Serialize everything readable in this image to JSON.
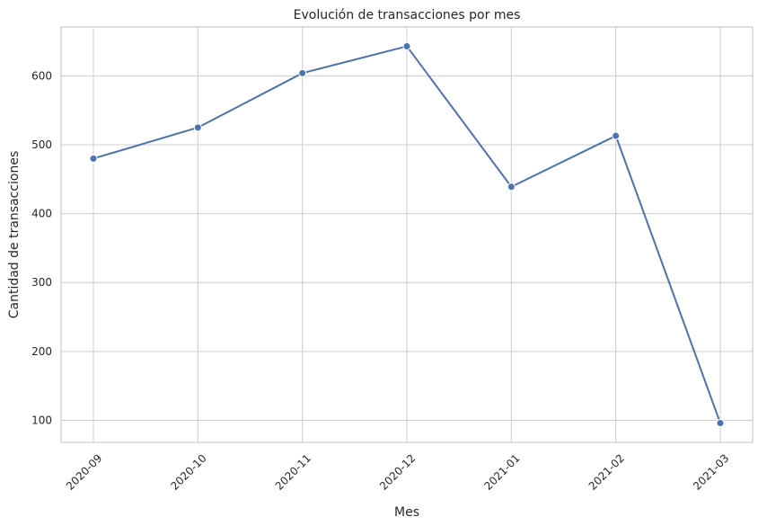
{
  "chart_data": {
    "type": "line",
    "title": "Evolución de transacciones por mes",
    "xlabel": "Mes",
    "ylabel": "Cantidad de transacciones",
    "categories": [
      "2020-09",
      "2020-10",
      "2020-11",
      "2020-12",
      "2021-01",
      "2021-02",
      "2021-03"
    ],
    "series": [
      {
        "values": [
          480,
          525,
          604,
          643,
          439,
          513,
          96
        ],
        "color": "#4c72b0",
        "marker": "circle"
      }
    ],
    "ylim": [
      68,
      671
    ],
    "yticks": [
      100,
      200,
      300,
      400,
      500,
      600
    ],
    "grid": true,
    "xtick_rotation": 45,
    "legend": "none"
  }
}
